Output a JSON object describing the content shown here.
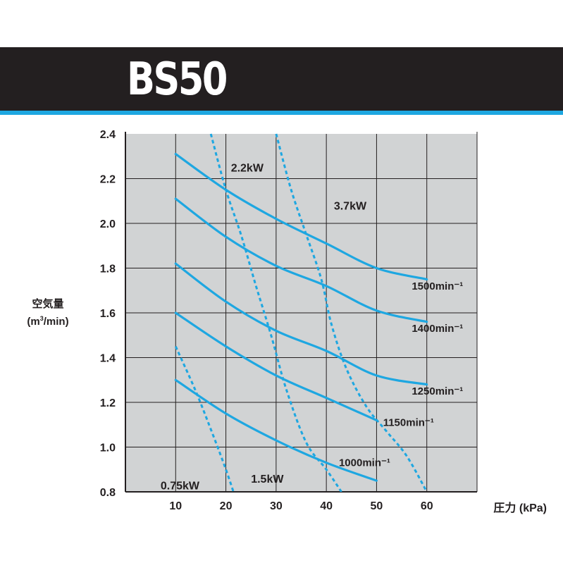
{
  "header": {
    "title": "BS50"
  },
  "colors": {
    "header_bg": "#231f20",
    "accent": "#1ea7e1",
    "plot_bg": "#d1d3d4",
    "line": "#1ea7e1",
    "grid": "#231f20"
  },
  "chart_data": {
    "type": "line",
    "title": "BS50",
    "xlabel": "圧力 (kPa)",
    "ylabel_line1": "空気量",
    "ylabel_line2_pre": "(m",
    "ylabel_line2_sup": "3",
    "ylabel_line2_post": "/min)",
    "xlim": [
      0,
      70
    ],
    "ylim": [
      0.8,
      2.4
    ],
    "x_ticks": [
      10,
      20,
      30,
      40,
      50,
      60
    ],
    "x_tick_labels": [
      "10",
      "20",
      "30",
      "40",
      "50",
      "60"
    ],
    "y_ticks": [
      0.8,
      1.0,
      1.2,
      1.4,
      1.6,
      1.8,
      2.0,
      2.2,
      2.4
    ],
    "y_tick_labels": [
      "0.8",
      "1.0",
      "1.2",
      "1.4",
      "1.6",
      "1.8",
      "2.0",
      "2.2",
      "2.4"
    ],
    "grid": true,
    "speed_curves": [
      {
        "label": "1500min⁻¹",
        "points": [
          [
            10,
            2.31
          ],
          [
            20,
            2.15
          ],
          [
            30,
            2.02
          ],
          [
            40,
            1.91
          ],
          [
            50,
            1.8
          ],
          [
            60,
            1.75
          ]
        ],
        "label_at": [
          57,
          1.72
        ]
      },
      {
        "label": "1400min⁻¹",
        "points": [
          [
            10,
            2.11
          ],
          [
            20,
            1.94
          ],
          [
            30,
            1.81
          ],
          [
            40,
            1.72
          ],
          [
            50,
            1.61
          ],
          [
            60,
            1.56
          ]
        ],
        "label_at": [
          57,
          1.53
        ]
      },
      {
        "label": "1250min⁻¹",
        "points": [
          [
            10,
            1.82
          ],
          [
            20,
            1.65
          ],
          [
            30,
            1.52
          ],
          [
            40,
            1.43
          ],
          [
            50,
            1.32
          ],
          [
            60,
            1.28
          ]
        ],
        "label_at": [
          57,
          1.25
        ]
      },
      {
        "label": "1150min⁻¹",
        "points": [
          [
            10,
            1.6
          ],
          [
            20,
            1.45
          ],
          [
            30,
            1.32
          ],
          [
            40,
            1.22
          ],
          [
            50,
            1.12
          ]
        ],
        "label_at": [
          51.3,
          1.11
        ]
      },
      {
        "label": "1000min⁻¹",
        "points": [
          [
            10,
            1.3
          ],
          [
            20,
            1.15
          ],
          [
            30,
            1.03
          ],
          [
            40,
            0.93
          ],
          [
            50,
            0.85
          ]
        ],
        "label_at": [
          42.5,
          0.93
        ]
      }
    ],
    "power_curves": [
      {
        "label": "0.75kW",
        "points": [
          [
            10,
            1.45
          ],
          [
            14,
            1.25
          ],
          [
            17.5,
            1.05
          ],
          [
            20,
            0.9
          ],
          [
            21.5,
            0.8
          ]
        ],
        "label_at": [
          7,
          0.83
        ]
      },
      {
        "label": "1.5kW",
        "points": [
          [
            17,
            2.4
          ],
          [
            20,
            2.15
          ],
          [
            23,
            1.95
          ],
          [
            26,
            1.72
          ],
          [
            29,
            1.5
          ],
          [
            32,
            1.26
          ],
          [
            36,
            1.02
          ],
          [
            40,
            0.9
          ],
          [
            43,
            0.8
          ]
        ],
        "label_at": [
          25,
          0.86
        ]
      },
      {
        "label": "2.2kW",
        "points": [
          [
            30,
            2.4
          ],
          [
            33,
            2.15
          ],
          [
            36,
            1.95
          ],
          [
            39,
            1.75
          ],
          [
            41,
            1.55
          ],
          [
            44,
            1.35
          ],
          [
            48,
            1.18
          ],
          [
            52,
            1.07
          ],
          [
            56,
            0.96
          ],
          [
            60,
            0.8
          ]
        ],
        "label_at": [
          21,
          2.25
        ]
      },
      {
        "label": "3.7kW",
        "points": [],
        "label_at": [
          41.5,
          2.08
        ]
      }
    ]
  }
}
